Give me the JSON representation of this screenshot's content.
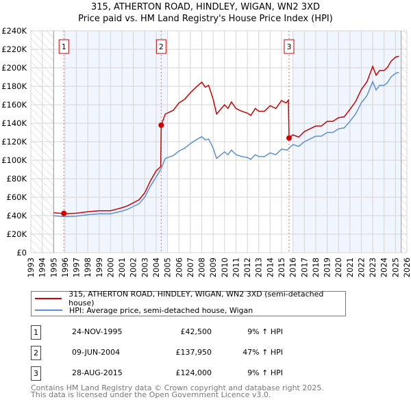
{
  "chart_data": {
    "type": "line",
    "title": "315, ATHERTON ROAD, HINDLEY, WIGAN, WN2 3XD",
    "subtitle": "Price paid vs. HM Land Registry's House Price Index (HPI)",
    "xlim": [
      1993,
      2026
    ],
    "ylim": [
      0,
      240000
    ],
    "x_ticks": [
      "1993",
      "1994",
      "1995",
      "1996",
      "1997",
      "1998",
      "1999",
      "2000",
      "2001",
      "2002",
      "2003",
      "2004",
      "2005",
      "2006",
      "2007",
      "2008",
      "2009",
      "2010",
      "2011",
      "2012",
      "2013",
      "2014",
      "2015",
      "2016",
      "2017",
      "2018",
      "2019",
      "2020",
      "2021",
      "2022",
      "2023",
      "2024",
      "2025",
      "2026"
    ],
    "y_ticks": [
      {
        "v": 0,
        "label": "£0"
      },
      {
        "v": 20000,
        "label": "£20K"
      },
      {
        "v": 40000,
        "label": "£40K"
      },
      {
        "v": 60000,
        "label": "£60K"
      },
      {
        "v": 80000,
        "label": "£80K"
      },
      {
        "v": 100000,
        "label": "£100K"
      },
      {
        "v": 120000,
        "label": "£120K"
      },
      {
        "v": 140000,
        "label": "£140K"
      },
      {
        "v": 160000,
        "label": "£160K"
      },
      {
        "v": 180000,
        "label": "£180K"
      },
      {
        "v": 200000,
        "label": "£200K"
      },
      {
        "v": 220000,
        "label": "£220K"
      },
      {
        "v": 240000,
        "label": "£240K"
      }
    ],
    "grid": true,
    "hatched_ranges": [
      [
        1993,
        1995
      ],
      [
        2025.5,
        2026
      ]
    ],
    "shaded_ranges": [
      [
        1996,
        2005
      ],
      [
        2016,
        2025.5
      ]
    ],
    "series": [
      {
        "name": "315, ATHERTON ROAD, HINDLEY, WIGAN, WN2 3XD (semi-detached house)",
        "color": "#cc0000",
        "points": [
          [
            1995,
            43.2
          ],
          [
            1996,
            42.1
          ],
          [
            1997,
            42.7
          ],
          [
            1998,
            44.3
          ],
          [
            1999,
            45.4
          ],
          [
            2000,
            45.4
          ],
          [
            2000.5,
            47
          ],
          [
            2001,
            48.6
          ],
          [
            2001.5,
            50.8
          ],
          [
            2002,
            54
          ],
          [
            2002.5,
            57.2
          ],
          [
            2003,
            64.8
          ],
          [
            2003.5,
            77.8
          ],
          [
            2004,
            88.6
          ],
          [
            2004.4,
            93
          ],
          [
            2004.44,
            137.95
          ],
          [
            2004.8,
            150
          ],
          [
            2005.5,
            154
          ],
          [
            2006,
            162
          ],
          [
            2006.5,
            166
          ],
          [
            2007,
            173
          ],
          [
            2007.5,
            179
          ],
          [
            2008,
            184.5
          ],
          [
            2008.3,
            179
          ],
          [
            2008.6,
            181
          ],
          [
            2009,
            166
          ],
          [
            2009.3,
            150
          ],
          [
            2010,
            160
          ],
          [
            2010.3,
            156
          ],
          [
            2010.6,
            163
          ],
          [
            2011,
            156
          ],
          [
            2011.5,
            153
          ],
          [
            2012,
            151
          ],
          [
            2012.3,
            148.5
          ],
          [
            2012.7,
            156
          ],
          [
            2013,
            153
          ],
          [
            2013.5,
            153
          ],
          [
            2014,
            159
          ],
          [
            2014.5,
            156
          ],
          [
            2015,
            164.6
          ],
          [
            2015.4,
            162
          ],
          [
            2015.6,
            165
          ],
          [
            2015.66,
            124
          ],
          [
            2016,
            127.5
          ],
          [
            2016.5,
            125
          ],
          [
            2017,
            131
          ],
          [
            2017.5,
            134
          ],
          [
            2018,
            137
          ],
          [
            2018.5,
            137
          ],
          [
            2019,
            142
          ],
          [
            2019.5,
            142
          ],
          [
            2020,
            146
          ],
          [
            2020.5,
            147
          ],
          [
            2021,
            155
          ],
          [
            2021.5,
            163.5
          ],
          [
            2022,
            176.5
          ],
          [
            2022.5,
            185
          ],
          [
            2023,
            201.5
          ],
          [
            2023.3,
            192
          ],
          [
            2023.6,
            197
          ],
          [
            2024,
            197
          ],
          [
            2024.3,
            200.5
          ],
          [
            2024.6,
            207
          ],
          [
            2025,
            211.5
          ],
          [
            2025.3,
            212.5
          ]
        ]
      },
      {
        "name": "HPI: Average price, semi-detached house, Wigan",
        "color": "#5b8fd4",
        "points": [
          [
            1995,
            40
          ],
          [
            1996,
            39
          ],
          [
            1997,
            39.5
          ],
          [
            1998,
            41
          ],
          [
            1999,
            42
          ],
          [
            2000,
            42
          ],
          [
            2000.5,
            43.5
          ],
          [
            2001,
            45
          ],
          [
            2001.5,
            47
          ],
          [
            2002,
            50
          ],
          [
            2002.5,
            53
          ],
          [
            2003,
            60
          ],
          [
            2003.5,
            72
          ],
          [
            2004,
            82
          ],
          [
            2004.4,
            90
          ],
          [
            2004.8,
            102
          ],
          [
            2005.5,
            105
          ],
          [
            2006,
            110
          ],
          [
            2006.5,
            113
          ],
          [
            2007,
            118
          ],
          [
            2007.5,
            122
          ],
          [
            2008,
            125.5
          ],
          [
            2008.3,
            122
          ],
          [
            2008.6,
            123
          ],
          [
            2009,
            113
          ],
          [
            2009.3,
            102
          ],
          [
            2010,
            109
          ],
          [
            2010.3,
            106
          ],
          [
            2010.6,
            111
          ],
          [
            2011,
            106
          ],
          [
            2011.5,
            104
          ],
          [
            2012,
            103
          ],
          [
            2012.3,
            101
          ],
          [
            2012.7,
            106
          ],
          [
            2013,
            104
          ],
          [
            2013.5,
            104
          ],
          [
            2014,
            108
          ],
          [
            2014.5,
            106
          ],
          [
            2015,
            112
          ],
          [
            2015.5,
            111
          ],
          [
            2016,
            117
          ],
          [
            2016.5,
            115
          ],
          [
            2017,
            120
          ],
          [
            2017.5,
            123
          ],
          [
            2018,
            126
          ],
          [
            2018.5,
            126
          ],
          [
            2019,
            130
          ],
          [
            2019.5,
            130
          ],
          [
            2020,
            134
          ],
          [
            2020.5,
            135
          ],
          [
            2021,
            142
          ],
          [
            2021.5,
            150
          ],
          [
            2022,
            162
          ],
          [
            2022.5,
            170
          ],
          [
            2023,
            185
          ],
          [
            2023.3,
            176
          ],
          [
            2023.6,
            181
          ],
          [
            2024,
            181
          ],
          [
            2024.3,
            184
          ],
          [
            2024.6,
            190
          ],
          [
            2025,
            194
          ],
          [
            2025.3,
            195
          ]
        ]
      }
    ],
    "values_unit": "thousands GBP",
    "sales": [
      {
        "n": "1",
        "x": 1995.9,
        "value": 42500,
        "date": "24-NOV-1995",
        "price": "£42,500",
        "hpi": "9% ↑ HPI"
      },
      {
        "n": "2",
        "x": 2004.44,
        "value": 137950,
        "date": "09-JUN-2004",
        "price": "£137,950",
        "hpi": "47% ↑ HPI"
      },
      {
        "n": "3",
        "x": 2015.66,
        "value": 124000,
        "date": "28-AUG-2015",
        "price": "£124,000",
        "hpi": "9% ↑ HPI"
      }
    ],
    "legend_position": "below"
  },
  "footer": [
    "Contains HM Land Registry data © Crown copyright and database right 2025.",
    "This data is licensed under the Open Government Licence v3.0."
  ]
}
